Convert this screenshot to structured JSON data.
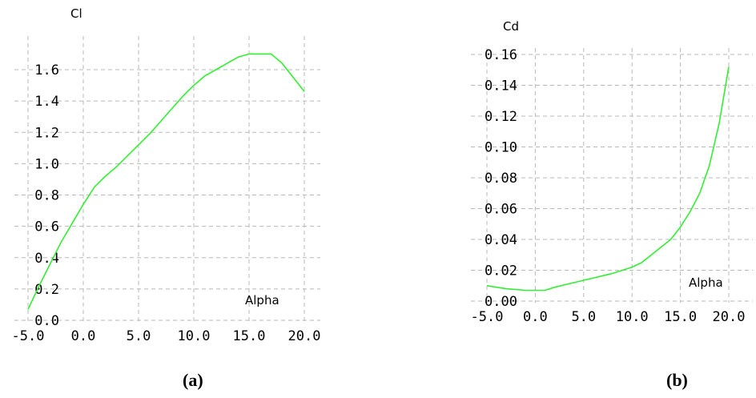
{
  "chart_data": [
    {
      "type": "line",
      "ylabel": "Cl",
      "xlabel": "Alpha",
      "caption": "(a)",
      "xlim": [
        -5,
        20
      ],
      "ylim": [
        0,
        1.6
      ],
      "xticks": [
        "-5.0",
        "0.0",
        "5.0",
        "10.0",
        "15.0",
        "20.0"
      ],
      "xtick_values": [
        -5,
        0,
        5,
        10,
        15,
        20
      ],
      "yticks": [
        "0.0",
        "0.2",
        "0.4",
        "0.6",
        "0.8",
        "1.0",
        "1.2",
        "1.4",
        "1.6"
      ],
      "ytick_values": [
        0,
        0.2,
        0.4,
        0.6,
        0.8,
        1.0,
        1.2,
        1.4,
        1.6
      ],
      "grid": true,
      "color": "#33ee33",
      "series": [
        {
          "x": [
            -5,
            -4,
            -3,
            -2,
            -1,
            0,
            1,
            2,
            3,
            4,
            5,
            6,
            7,
            8,
            9,
            10,
            11,
            12,
            13,
            14,
            15,
            16,
            17,
            18,
            19,
            20
          ],
          "y": [
            0.07,
            0.22,
            0.36,
            0.5,
            0.62,
            0.74,
            0.85,
            0.92,
            0.98,
            1.05,
            1.12,
            1.19,
            1.27,
            1.35,
            1.43,
            1.5,
            1.56,
            1.6,
            1.64,
            1.68,
            1.7,
            1.7,
            1.7,
            1.64,
            1.55,
            1.46
          ]
        }
      ]
    },
    {
      "type": "line",
      "ylabel": "Cd",
      "xlabel": "Alpha",
      "caption": "(b)",
      "xlim": [
        -5,
        20
      ],
      "ylim": [
        0,
        0.16
      ],
      "xticks": [
        "-5.0",
        "0.0",
        "5.0",
        "10.0",
        "15.0",
        "20.0"
      ],
      "xtick_values": [
        -5,
        0,
        5,
        10,
        15,
        20
      ],
      "yticks": [
        "0.00",
        "0.02",
        "0.04",
        "0.06",
        "0.08",
        "0.10",
        "0.12",
        "0.14",
        "0.16"
      ],
      "ytick_values": [
        0,
        0.02,
        0.04,
        0.06,
        0.08,
        0.1,
        0.12,
        0.14,
        0.16
      ],
      "grid": true,
      "color": "#33ee33",
      "series": [
        {
          "x": [
            -5,
            -3,
            -1,
            0,
            1,
            2,
            4,
            6,
            8,
            10,
            11,
            12,
            13,
            14,
            15,
            16,
            17,
            18,
            19,
            20
          ],
          "y": [
            0.01,
            0.008,
            0.007,
            0.007,
            0.007,
            0.009,
            0.012,
            0.015,
            0.018,
            0.022,
            0.025,
            0.03,
            0.035,
            0.04,
            0.048,
            0.058,
            0.07,
            0.088,
            0.115,
            0.152
          ]
        }
      ]
    }
  ]
}
